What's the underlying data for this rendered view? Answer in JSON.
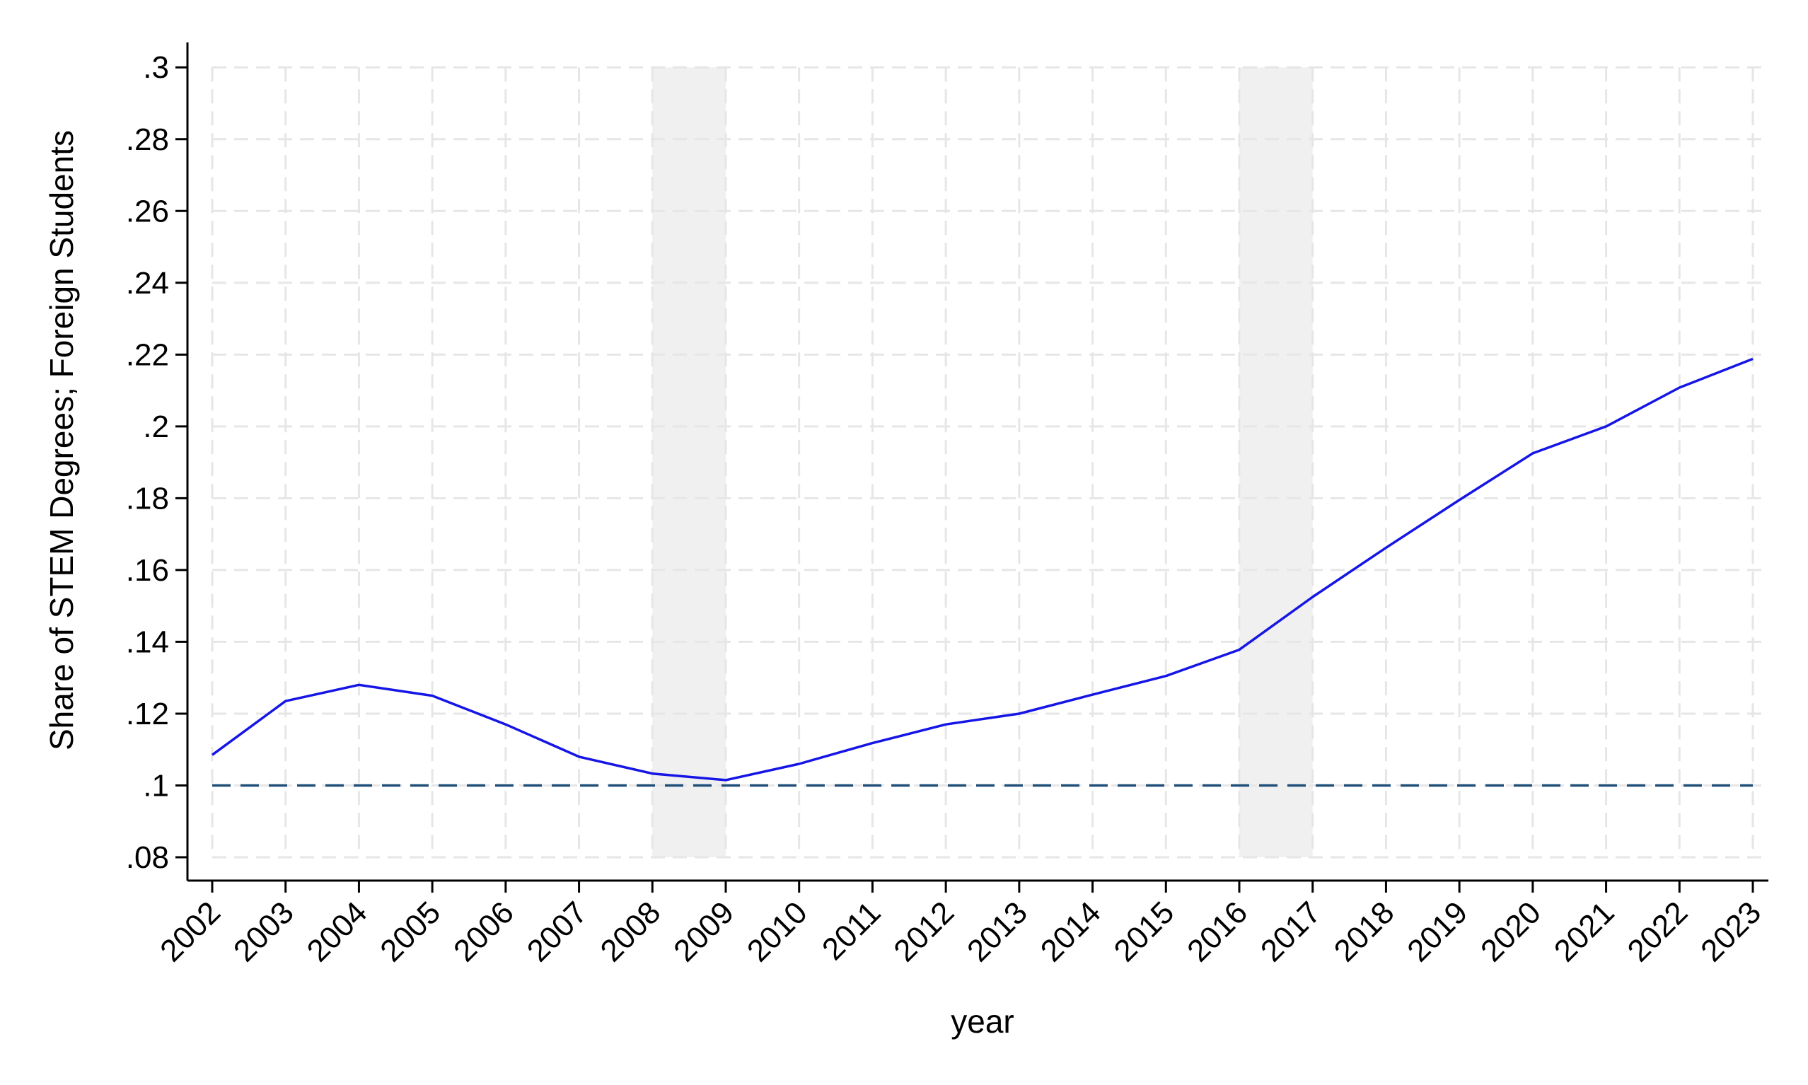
{
  "chart_data": {
    "type": "line",
    "title": "",
    "xlabel": "year",
    "ylabel": "Share of STEM Degrees; Foreign Students",
    "x": [
      2002,
      2003,
      2004,
      2005,
      2006,
      2007,
      2008,
      2009,
      2010,
      2011,
      2012,
      2013,
      2014,
      2015,
      2016,
      2017,
      2018,
      2019,
      2020,
      2021,
      2022,
      2023
    ],
    "x_tick_labels": [
      "2002",
      "2003",
      "2004",
      "2005",
      "2006",
      "2007",
      "2008",
      "2009",
      "2010",
      "2011",
      "2012",
      "2013",
      "2014",
      "2015",
      "2016",
      "2017",
      "2018",
      "2019",
      "2020",
      "2021",
      "2022",
      "2023"
    ],
    "y_ticks": [
      0.08,
      0.1,
      0.12,
      0.14,
      0.16,
      0.18,
      0.2,
      0.22,
      0.24,
      0.26,
      0.28,
      0.3
    ],
    "y_tick_labels": [
      ".08",
      ".1",
      ".12",
      ".14",
      ".16",
      ".18",
      ".2",
      ".22",
      ".24",
      ".26",
      ".28",
      ".3"
    ],
    "xlim": [
      2002,
      2023
    ],
    "ylim": [
      0.0735,
      0.303
    ],
    "grid": true,
    "series": [
      {
        "values": [
          0.1085,
          0.1235,
          0.128,
          0.125,
          0.117,
          0.108,
          0.1033,
          0.1015,
          0.106,
          0.1118,
          0.117,
          0.12,
          0.1253,
          0.1305,
          0.1378,
          0.1525,
          0.1662,
          0.1795,
          0.1925,
          0.2,
          0.2108,
          0.2188
        ],
        "color": "#1515e6"
      }
    ],
    "reference_lines": [
      {
        "axis": "y",
        "value": 0.1,
        "style": "dashed",
        "color": "#1f4e79"
      }
    ],
    "shaded_ranges": [
      {
        "x_start": 2008,
        "x_end": 2009,
        "y_start": 0.08,
        "y_end": 0.3,
        "color": "#f0f0f0"
      },
      {
        "x_start": 2016,
        "x_end": 2017,
        "y_start": 0.08,
        "y_end": 0.3,
        "color": "#f0f0f0"
      }
    ]
  }
}
